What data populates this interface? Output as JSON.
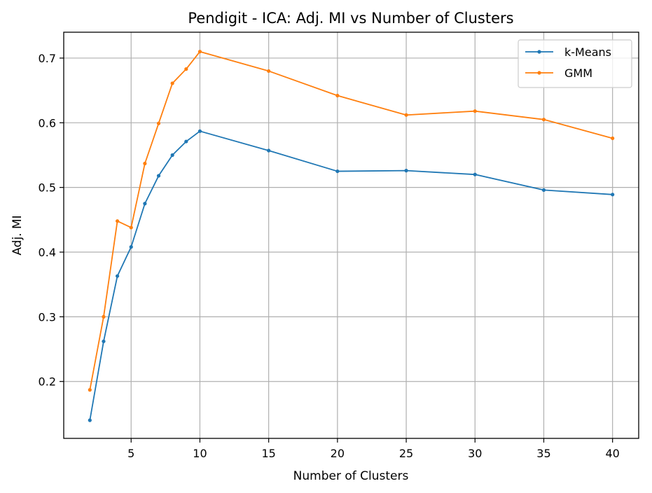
{
  "chart_data": {
    "type": "line",
    "title": "Pendigit - ICA: Adj. MI vs Number of Clusters",
    "xlabel": "Number of Clusters",
    "ylabel": "Adj. MI",
    "xlim": [
      0.1,
      41.9
    ],
    "ylim": [
      0.112,
      0.74
    ],
    "xticks": [
      5,
      10,
      15,
      20,
      25,
      30,
      35,
      40
    ],
    "yticks": [
      0.2,
      0.3,
      0.4,
      0.5,
      0.6,
      0.7
    ],
    "grid": true,
    "legend_position": "top-right",
    "x": [
      2,
      3,
      4,
      5,
      6,
      7,
      8,
      9,
      10,
      15,
      20,
      25,
      30,
      35,
      40
    ],
    "series": [
      {
        "name": "k-Means",
        "color": "#1f77b4",
        "values": [
          0.14,
          0.262,
          0.363,
          0.408,
          0.475,
          0.518,
          0.55,
          0.571,
          0.587,
          0.557,
          0.525,
          0.526,
          0.52,
          0.496,
          0.489
        ]
      },
      {
        "name": "GMM",
        "color": "#ff7f0e",
        "values": [
          0.187,
          0.3,
          0.448,
          0.438,
          0.537,
          0.599,
          0.661,
          0.683,
          0.71,
          0.68,
          0.642,
          0.612,
          0.618,
          0.605,
          0.576
        ]
      }
    ]
  }
}
